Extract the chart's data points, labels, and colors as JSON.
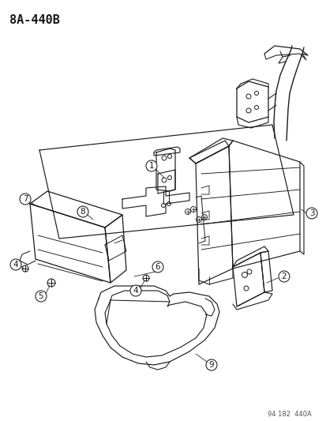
{
  "title": "8A-440B",
  "footer": "94 182  440A",
  "bg": "#ffffff",
  "lc": "#1a1a1a",
  "gc": "#555555",
  "title_fs": 11,
  "footer_fs": 6,
  "label_fs": 7.5,
  "figsize": [
    4.14,
    5.33
  ],
  "dpi": 100
}
